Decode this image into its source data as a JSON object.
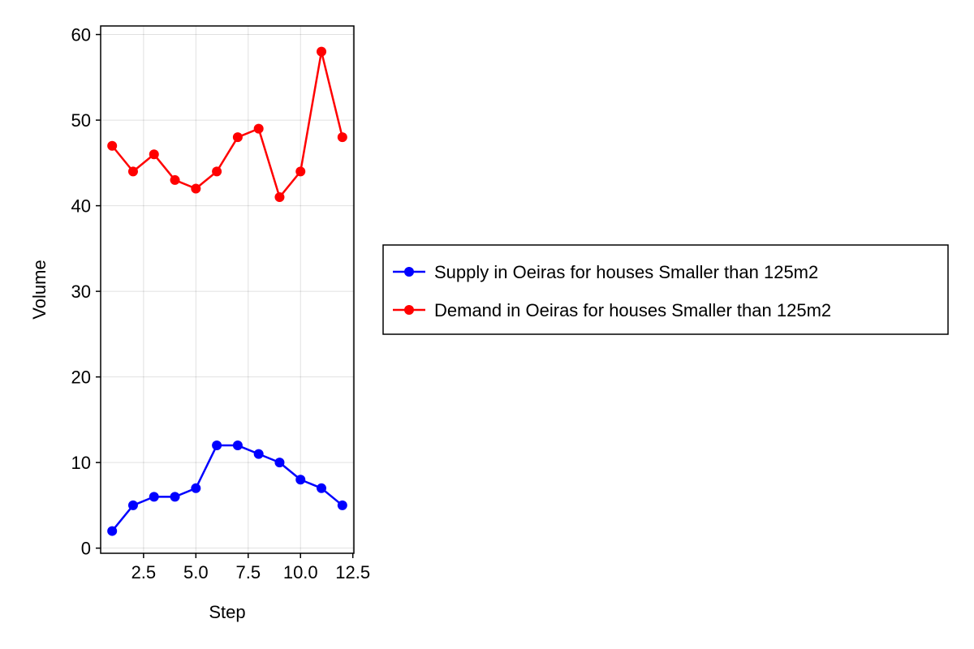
{
  "chart_data": {
    "type": "line",
    "title": "",
    "xlabel": "Step",
    "ylabel": "Volume",
    "xlim": [
      0.45,
      12.55
    ],
    "ylim": [
      -0.6,
      61.0
    ],
    "xticks": [
      2.5,
      5.0,
      7.5,
      10.0,
      12.5
    ],
    "xtick_labels": [
      "2.5",
      "5.0",
      "7.5",
      "10.0",
      "12.5"
    ],
    "yticks": [
      0,
      10,
      20,
      30,
      40,
      50,
      60
    ],
    "ytick_labels": [
      "0",
      "10",
      "20",
      "30",
      "40",
      "50",
      "60"
    ],
    "grid": true,
    "legend_position": "right",
    "x": [
      1,
      2,
      3,
      4,
      5,
      6,
      7,
      8,
      9,
      10,
      11,
      12
    ],
    "series": [
      {
        "name": "Supply in Oeiras for houses Smaller than 125m2",
        "color": "#0000ff",
        "marker": "circle",
        "values": [
          2,
          5,
          6,
          6,
          7,
          12,
          12,
          11,
          10,
          8,
          7,
          5
        ]
      },
      {
        "name": "Demand in Oeiras for houses Smaller than 125m2",
        "color": "#ff0000",
        "marker": "circle",
        "values": [
          47,
          44,
          46,
          43,
          42,
          44,
          48,
          49,
          41,
          44,
          58,
          48
        ]
      }
    ]
  }
}
